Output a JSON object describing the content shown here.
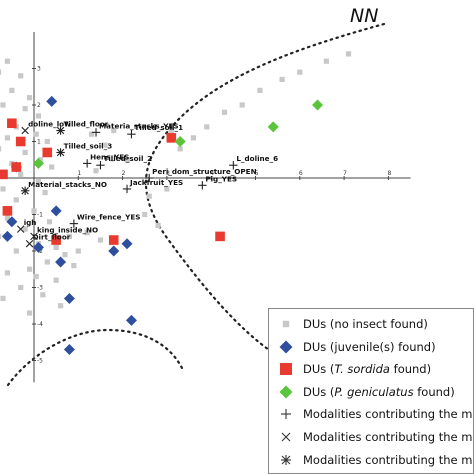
{
  "chart_data": {
    "type": "scatter",
    "title": "",
    "xlabel": "",
    "ylabel": "",
    "xlim": [
      -1.1,
      8.5
    ],
    "ylim": [
      -5.6,
      4.0
    ],
    "x_ticks": [
      1,
      2,
      3,
      4,
      5,
      6,
      7,
      8
    ],
    "y_ticks": [
      3,
      2,
      1,
      -1,
      -2,
      -3,
      -4,
      -5
    ],
    "grid": false,
    "legend_position": "bottom-right",
    "annotation": "NN",
    "series": [
      {
        "name": "DUs (no insect found)",
        "marker": "square",
        "color": "#c8c8c8",
        "points": [
          [
            -0.9,
            3.6
          ],
          [
            -0.6,
            3.2
          ],
          [
            -0.8,
            2.9
          ],
          [
            -0.3,
            2.8
          ],
          [
            -0.9,
            2.5
          ],
          [
            -0.5,
            2.4
          ],
          [
            -0.1,
            2.2
          ],
          [
            -0.7,
            2.0
          ],
          [
            -0.2,
            1.9
          ],
          [
            0.1,
            1.7
          ],
          [
            -0.9,
            1.5
          ],
          [
            -0.4,
            1.4
          ],
          [
            0.05,
            1.2
          ],
          [
            -0.6,
            1.1
          ],
          [
            0.3,
            1.0
          ],
          [
            -0.8,
            0.8
          ],
          [
            -0.2,
            0.7
          ],
          [
            0.15,
            0.5
          ],
          [
            -0.5,
            0.4
          ],
          [
            -0.9,
            0.2
          ],
          [
            0.4,
            0.3
          ],
          [
            -0.3,
            0.1
          ],
          [
            0.1,
            -0.1
          ],
          [
            -0.7,
            -0.3
          ],
          [
            0.25,
            -0.4
          ],
          [
            -0.4,
            -0.6
          ],
          [
            -0.9,
            -0.7
          ],
          [
            0.0,
            -0.9
          ],
          [
            -0.6,
            -1.1
          ],
          [
            0.35,
            -1.2
          ],
          [
            -0.2,
            -1.4
          ],
          [
            -0.8,
            -1.6
          ],
          [
            0.1,
            -1.8
          ],
          [
            0.5,
            -1.9
          ],
          [
            -0.4,
            -2.0
          ],
          [
            0.7,
            -2.1
          ],
          [
            0.3,
            -2.3
          ],
          [
            -0.1,
            -2.5
          ],
          [
            0.9,
            -2.4
          ],
          [
            -0.6,
            -2.6
          ],
          [
            0.5,
            -2.8
          ],
          [
            -0.3,
            -3.0
          ],
          [
            0.2,
            -3.2
          ],
          [
            -0.7,
            -3.3
          ],
          [
            0.6,
            -3.5
          ],
          [
            -0.1,
            -3.7
          ],
          [
            0.05,
            -2.7
          ],
          [
            0.8,
            -1.6
          ],
          [
            1.2,
            -1.5
          ],
          [
            1.5,
            -1.7
          ],
          [
            1.0,
            -2.0
          ],
          [
            1.3,
            1.2
          ],
          [
            1.6,
            0.9
          ],
          [
            1.8,
            1.3
          ],
          [
            2.1,
            0.5
          ],
          [
            1.4,
            0.2
          ],
          [
            2.5,
            -1.0
          ],
          [
            2.8,
            -1.3
          ],
          [
            3.1,
            1.3
          ],
          [
            3.3,
            0.8
          ],
          [
            3.6,
            1.1
          ],
          [
            3.9,
            1.4
          ],
          [
            4.3,
            1.8
          ],
          [
            4.7,
            2.0
          ],
          [
            5.1,
            2.4
          ],
          [
            5.6,
            2.7
          ],
          [
            6.0,
            2.9
          ],
          [
            6.6,
            3.2
          ],
          [
            7.1,
            3.4
          ],
          [
            3.0,
            -0.3
          ],
          [
            2.6,
            -0.5
          ]
        ]
      },
      {
        "name": "DUs (juvenile(s) found)",
        "marker": "diamond",
        "color": "#2e4f9e",
        "points": [
          [
            0.4,
            2.1
          ],
          [
            -0.4,
            0.3
          ],
          [
            0.5,
            -0.9
          ],
          [
            -0.5,
            -1.2
          ],
          [
            0.1,
            -1.9
          ],
          [
            0.6,
            -2.3
          ],
          [
            1.8,
            -2.0
          ],
          [
            2.1,
            -1.8
          ],
          [
            0.8,
            -3.3
          ],
          [
            2.2,
            -3.9
          ],
          [
            0.8,
            -4.7
          ],
          [
            -0.6,
            -1.6
          ]
        ]
      },
      {
        "name": "DUs (T. sordida found)",
        "marker": "square",
        "color": "#e83a2e",
        "points": [
          [
            -0.5,
            1.5
          ],
          [
            -0.3,
            1.0
          ],
          [
            -0.4,
            0.3
          ],
          [
            0.3,
            0.7
          ],
          [
            3.1,
            1.1
          ],
          [
            -0.6,
            -0.9
          ],
          [
            0.5,
            -1.7
          ],
          [
            1.8,
            -1.7
          ],
          [
            4.2,
            -1.6
          ],
          [
            -0.7,
            0.1
          ]
        ]
      },
      {
        "name": "DUs (P. geniculatus found)",
        "marker": "diamond",
        "color": "#5cc43a",
        "points": [
          [
            6.4,
            2.0
          ],
          [
            5.4,
            1.4
          ],
          [
            3.3,
            1.0
          ],
          [
            0.1,
            0.4
          ]
        ]
      }
    ],
    "modalities": [
      {
        "label": "Tilled_floor",
        "x": 0.6,
        "y": 1.3,
        "symbol": "star"
      },
      {
        "label": "Tilled_soil_1",
        "x": 2.2,
        "y": 1.2,
        "symbol": "plus"
      },
      {
        "label": "Materia_stacks_YES",
        "x": 1.4,
        "y": 1.25,
        "symbol": "plus"
      },
      {
        "label": "Tilled_soil_3",
        "x": 0.6,
        "y": 0.7,
        "symbol": "star"
      },
      {
        "label": "Hens_YES",
        "x": 1.2,
        "y": 0.4,
        "symbol": "plus"
      },
      {
        "label": "Tilled_soil_2",
        "x": 1.5,
        "y": 0.35,
        "symbol": "plus"
      },
      {
        "label": "L_doline_6",
        "x": 4.5,
        "y": 0.35,
        "symbol": "plus"
      },
      {
        "label": "Peri_dom_structure_OPEN",
        "x": 2.6,
        "y": 0.0,
        "symbol": "plus"
      },
      {
        "label": "Jackfruit_YES",
        "x": 2.1,
        "y": -0.3,
        "symbol": "plus"
      },
      {
        "label": "Pig_YES",
        "x": 3.8,
        "y": -0.2,
        "symbol": "plus"
      },
      {
        "label": "Material_stacks_NO",
        "x": -0.2,
        "y": -0.35,
        "symbol": "star"
      },
      {
        "label": "Wire_fence_YES",
        "x": 0.9,
        "y": -1.25,
        "symbol": "plus"
      },
      {
        "label": "Dirt_floor",
        "x": -0.1,
        "y": -1.8,
        "symbol": "cross"
      },
      {
        "label": "doline_low",
        "x": -0.2,
        "y": 1.3,
        "symbol": "cross"
      },
      {
        "label": "igh",
        "x": -0.3,
        "y": -1.4,
        "symbol": "cross"
      },
      {
        "label": "king_inside_NO",
        "x": 0.0,
        "y": -1.6,
        "symbol": "cross"
      }
    ]
  },
  "legend": {
    "items": [
      {
        "pre": "DUs (no insect found)",
        "italic": "",
        "post": "",
        "symbol": "square",
        "color": "#c8c8c8"
      },
      {
        "pre": "DUs (juvenile(s) found)",
        "italic": "",
        "post": "",
        "symbol": "diamond",
        "color": "#2e4f9e"
      },
      {
        "pre": "DUs (",
        "italic": "T. sordida",
        "post": " found)",
        "symbol": "square",
        "color": "#e83a2e"
      },
      {
        "pre": "DUs (",
        "italic": "P. geniculatus",
        "post": " found)",
        "symbol": "diamond",
        "color": "#5cc43a"
      },
      {
        "pre": "Modalities contributing the m",
        "italic": "",
        "post": "",
        "symbol": "plus",
        "color": "#333333"
      },
      {
        "pre": "Modalities contributing the m",
        "italic": "",
        "post": "",
        "symbol": "cross",
        "color": "#333333"
      },
      {
        "pre": "Modalities contributing the m",
        "italic": "",
        "post": "",
        "symbol": "star",
        "color": "#333333"
      }
    ]
  }
}
